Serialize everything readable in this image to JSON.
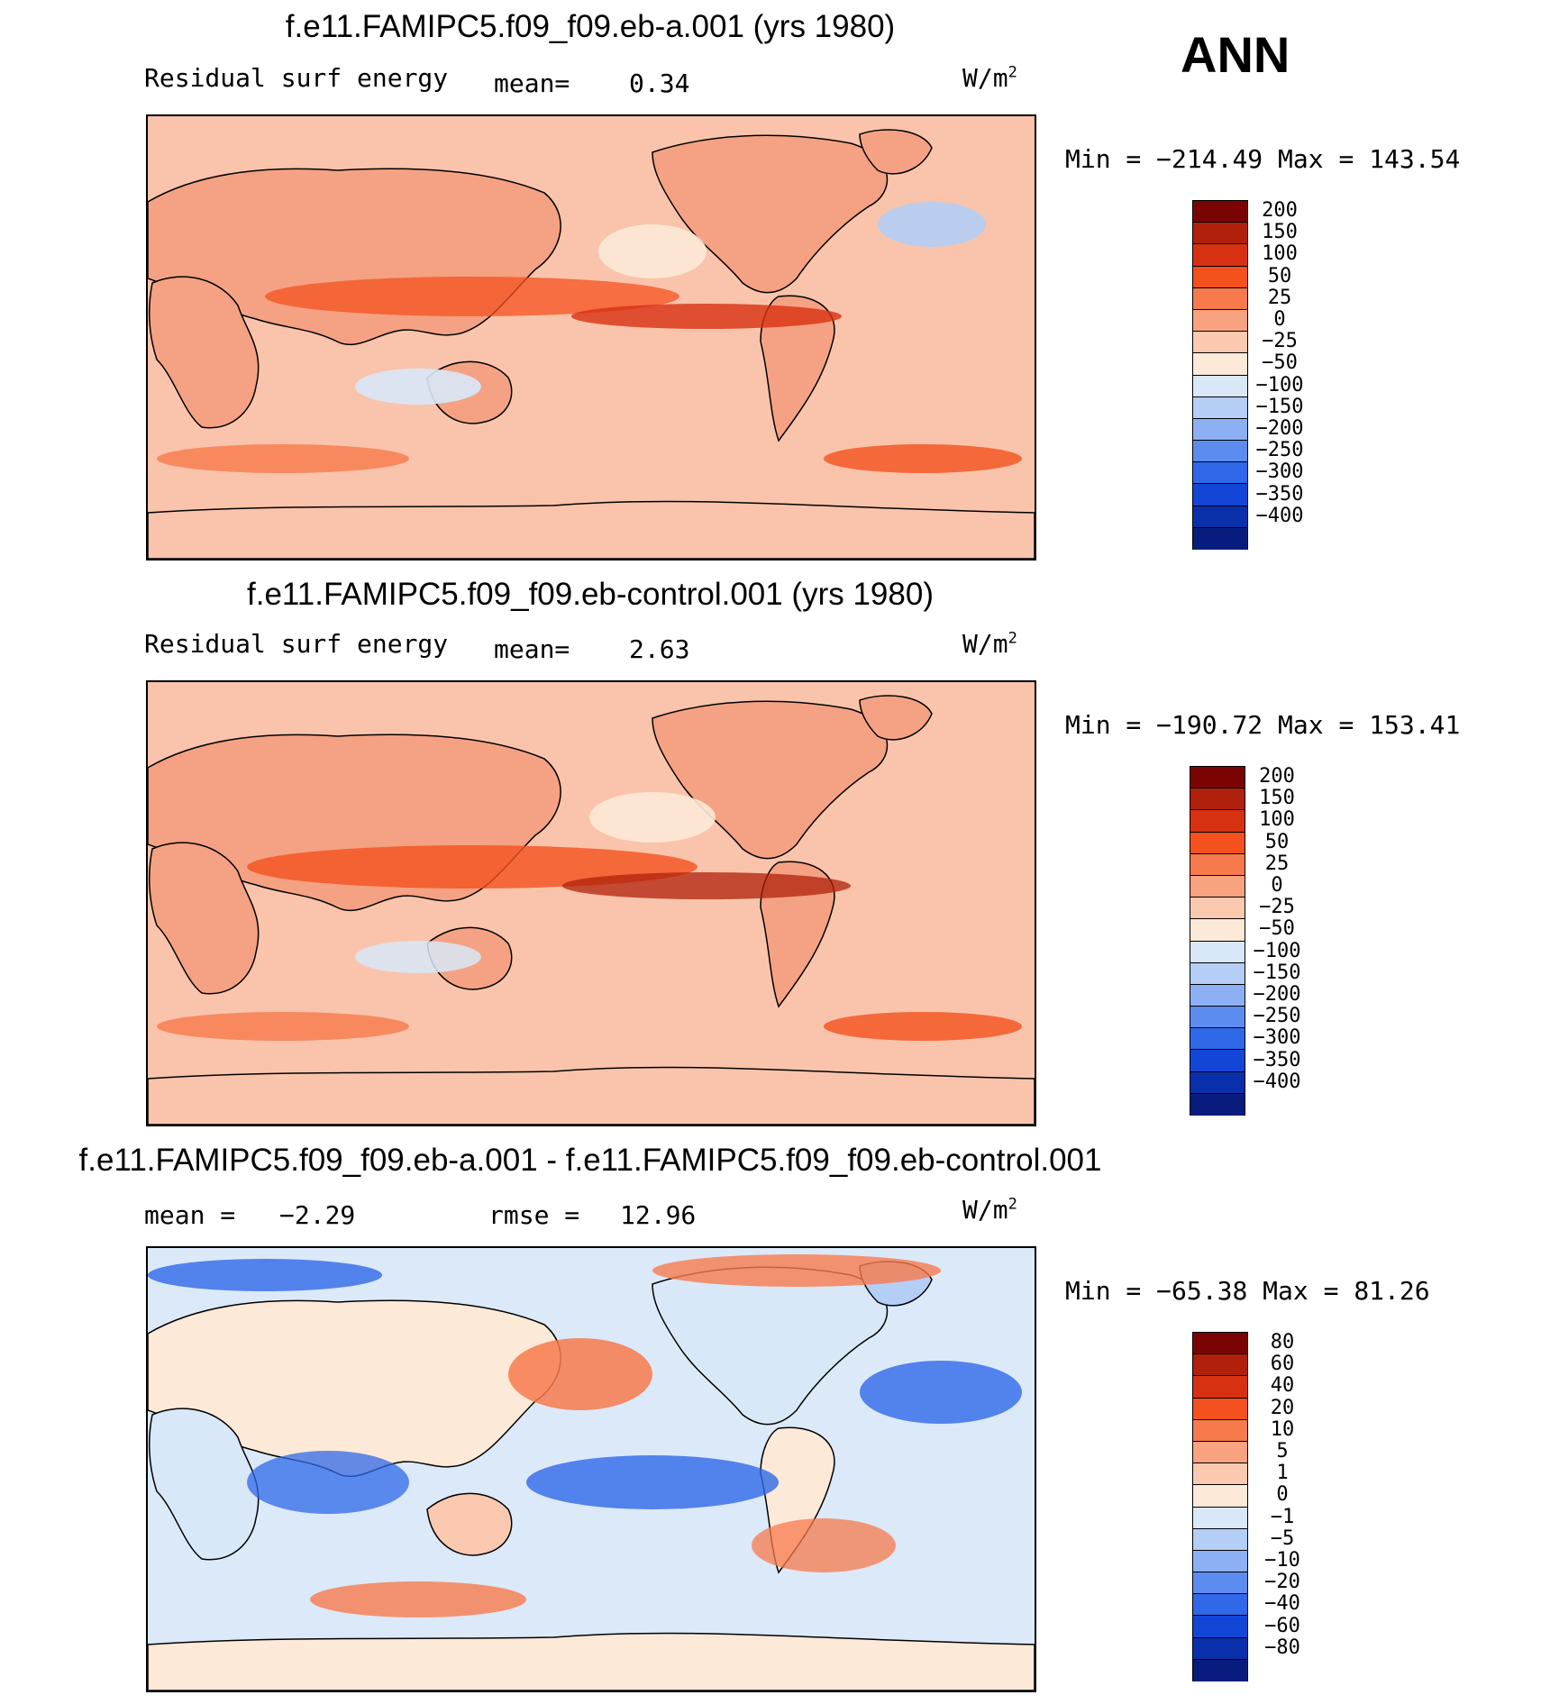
{
  "season": "ANN",
  "panels": [
    {
      "title": "f.e11.FAMIPC5.f09_f09.eb-a.001 (yrs 1980)",
      "left_label": "Residual surf energy",
      "mid_label": "mean=",
      "mid_value": "0.34",
      "units": "W/m",
      "units_sup": "2",
      "min_label": "Min",
      "min_value": "−214.49",
      "max_label": "Max",
      "max_value": "143.54",
      "ticks": [
        "200",
        "150",
        "100",
        "50",
        "25",
        "0",
        "−25",
        "−50",
        "−100",
        "−150",
        "−200",
        "−250",
        "−300",
        "−350",
        "−400"
      ]
    },
    {
      "title": "f.e11.FAMIPC5.f09_f09.eb-control.001 (yrs 1980)",
      "left_label": "Residual surf energy",
      "mid_label": "mean=",
      "mid_value": "2.63",
      "units": "W/m",
      "units_sup": "2",
      "min_label": "Min",
      "min_value": "−190.72",
      "max_label": "Max",
      "max_value": "153.41",
      "ticks": [
        "200",
        "150",
        "100",
        "50",
        "25",
        "0",
        "−25",
        "−50",
        "−100",
        "−150",
        "−200",
        "−250",
        "−300",
        "−350",
        "−400"
      ]
    },
    {
      "title": "f.e11.FAMIPC5.f09_f09.eb-a.001 - f.e11.FAMIPC5.f09_f09.eb-control.001",
      "left_label": "mean =",
      "left_value": "−2.29",
      "mid_label": "rmse =",
      "mid_value": "12.96",
      "units": "W/m",
      "units_sup": "2",
      "min_label": "Min",
      "min_value": "−65.38",
      "max_label": "Max",
      "max_value": "81.26",
      "ticks": [
        "80",
        "60",
        "40",
        "20",
        "10",
        "5",
        "1",
        "0",
        "−1",
        "−5",
        "−10",
        "−20",
        "−40",
        "−60",
        "−80"
      ]
    }
  ],
  "colors": {
    "colorbar_16": [
      "#7a0403",
      "#b0200a",
      "#d83112",
      "#f4511e",
      "#f77a4c",
      "#f8a27f",
      "#fbc9b0",
      "#fde9d7",
      "#d8e8f8",
      "#b4cef5",
      "#8cb0f3",
      "#5c8cf0",
      "#2f68e8",
      "#1346d6",
      "#0a2fab",
      "#081c7d"
    ],
    "land": "#f4a283",
    "background_ocean": "#f9c4ab",
    "diff_background": "#dce9f9"
  },
  "chart_data": [
    {
      "type": "contour-map",
      "title": "f.e11.FAMIPC5.f09_f09.eb-a.001 (yrs 1980)",
      "variable": "Residual surf energy",
      "units": "W/m2",
      "mean": 0.34,
      "min": -214.49,
      "max": 143.54,
      "contour_levels": [
        -400,
        -350,
        -300,
        -250,
        -200,
        -150,
        -100,
        -50,
        -25,
        0,
        25,
        50,
        100,
        150,
        200
      ]
    },
    {
      "type": "contour-map",
      "title": "f.e11.FAMIPC5.f09_f09.eb-control.001 (yrs 1980)",
      "variable": "Residual surf energy",
      "units": "W/m2",
      "mean": 2.63,
      "min": -190.72,
      "max": 153.41,
      "contour_levels": [
        -400,
        -350,
        -300,
        -250,
        -200,
        -150,
        -100,
        -50,
        -25,
        0,
        25,
        50,
        100,
        150,
        200
      ]
    },
    {
      "type": "contour-map",
      "title": "f.e11.FAMIPC5.f09_f09.eb-a.001 - f.e11.FAMIPC5.f09_f09.eb-control.001",
      "units": "W/m2",
      "mean": -2.29,
      "rmse": 12.96,
      "min": -65.38,
      "max": 81.26,
      "contour_levels": [
        -80,
        -60,
        -40,
        -20,
        -10,
        -5,
        -1,
        0,
        1,
        5,
        10,
        20,
        40,
        60,
        80
      ]
    }
  ]
}
